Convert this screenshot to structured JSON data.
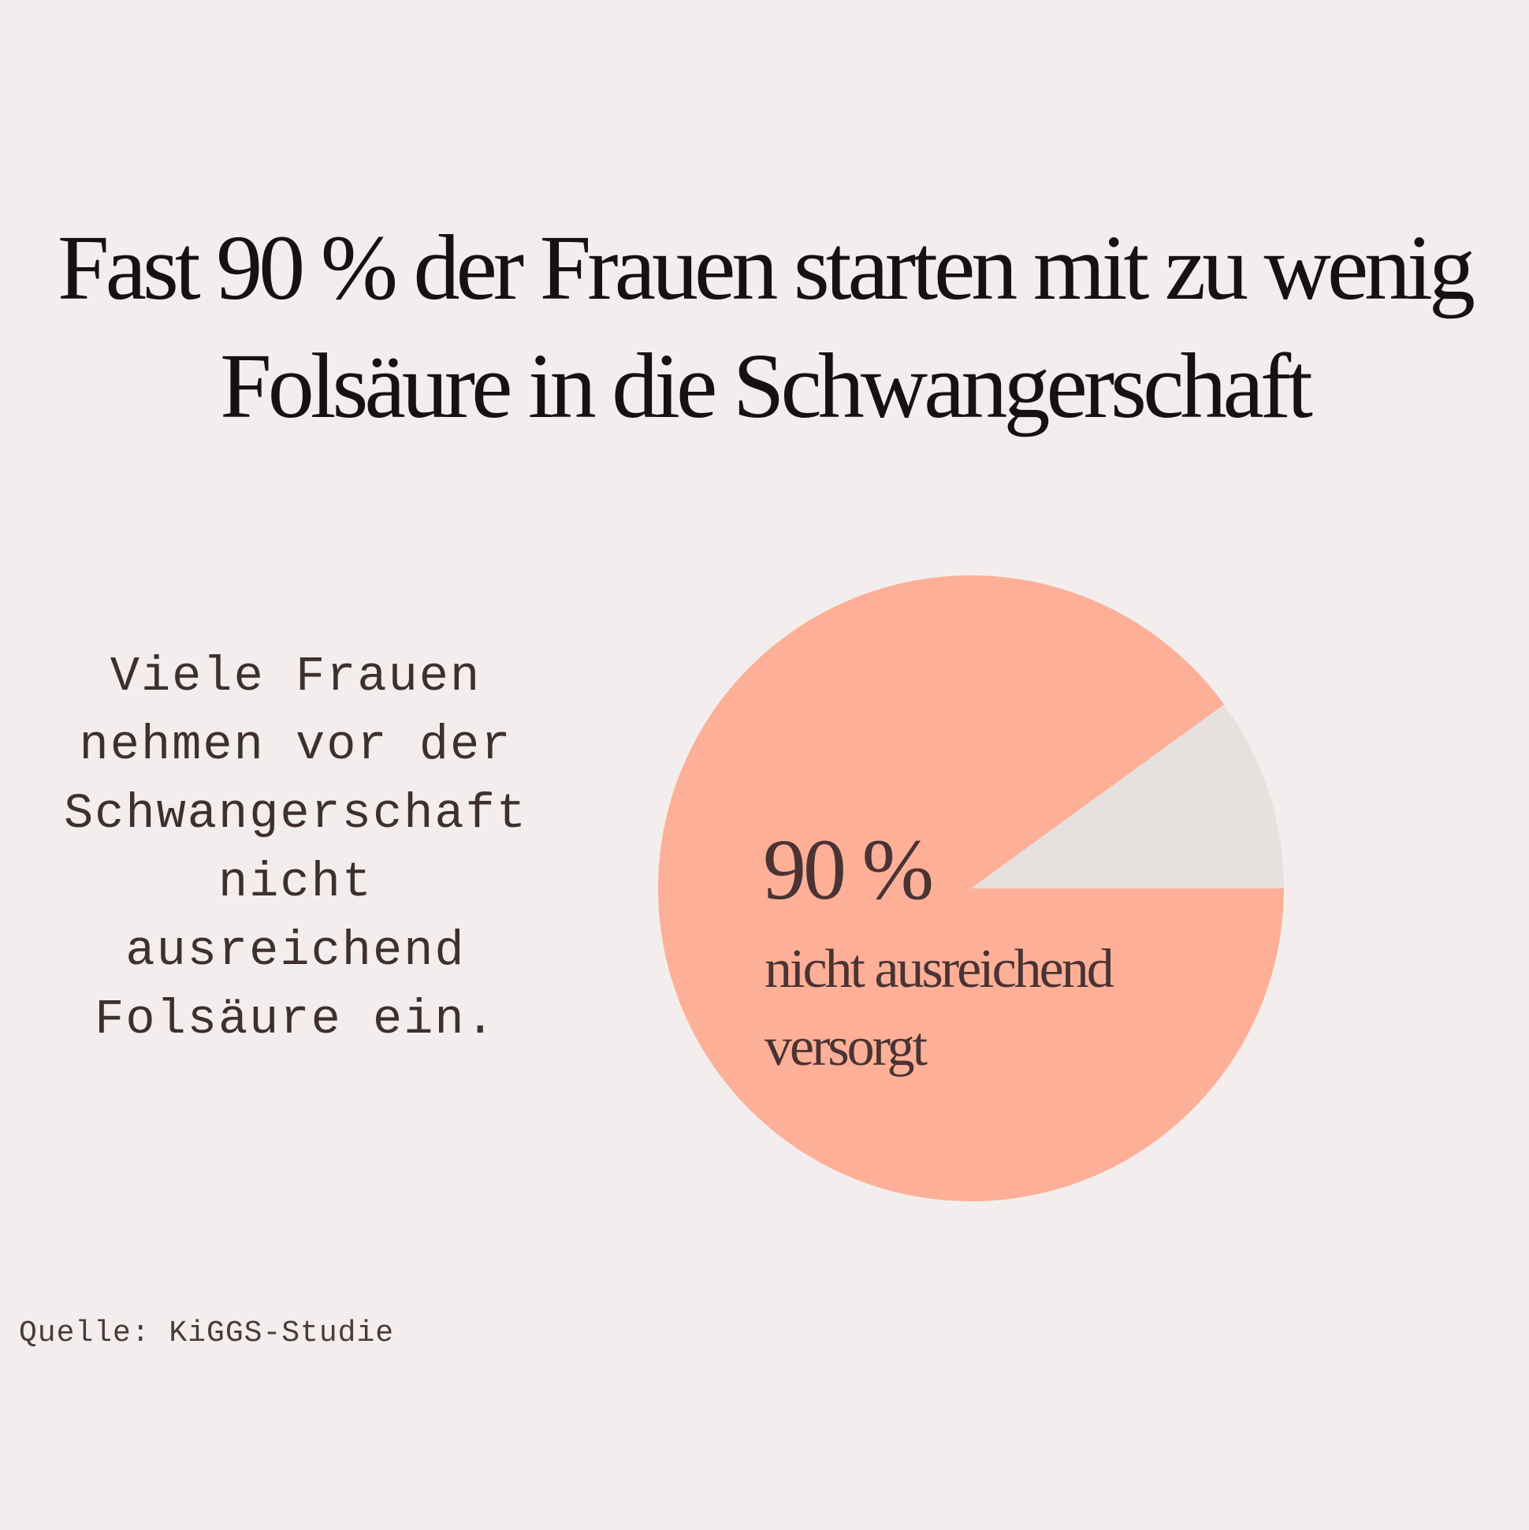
{
  "title": {
    "line1": "Fast 90 % der Frauen starten mit zu wenig",
    "line2": "Folsäure in die Schwangerschaft"
  },
  "description": {
    "lines": [
      "Viele Frauen",
      "nehmen vor der",
      "Schwangerschaft",
      "nicht",
      "ausreichend",
      "Folsäure ein."
    ]
  },
  "source": "Quelle: KiGGS-Studie",
  "chart_data": {
    "type": "pie",
    "slices": [
      {
        "label": "nicht ausreichend versorgt",
        "value": 90,
        "color": "#fdb097"
      },
      {
        "label": "",
        "value": 10,
        "color": "#e6e0df"
      }
    ],
    "data_label": {
      "value": "90 %",
      "text_line1": "nicht ausreichend",
      "text_line2": "versorgt"
    },
    "legend": "none"
  }
}
